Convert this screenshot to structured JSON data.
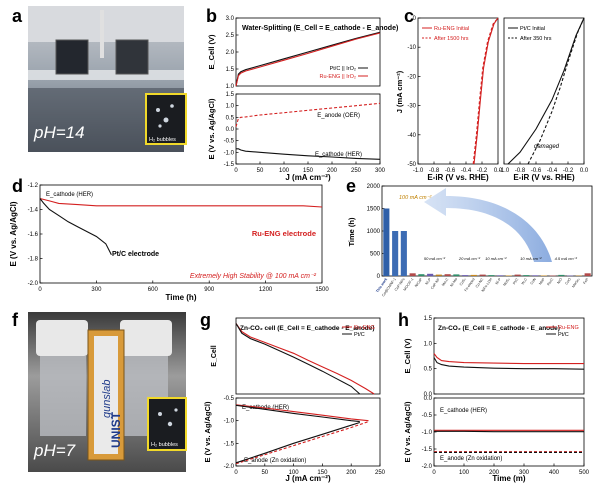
{
  "panel_labels": {
    "a": "a",
    "b": "b",
    "c": "c",
    "d": "d",
    "e": "e",
    "f": "f",
    "g": "g",
    "h": "h"
  },
  "photos": {
    "a": {
      "ph_text": "pH=14",
      "inset_text": "H₂ bubbles"
    },
    "f": {
      "ph_text": "pH=7",
      "inset_text": "H₂ bubbles",
      "device_text_1": "gunslab",
      "device_text_2": "UNIST"
    }
  },
  "colors": {
    "red": "#d42020",
    "black": "#111111",
    "blue_bar": "#2f5fa8",
    "arrow": "#8fb0e0"
  },
  "chart_data": [
    {
      "id": "b",
      "type": "line",
      "title": "Water-Splitting (E_Cell = E_cathode - E_anode)",
      "top": {
        "ylabel": "E_Cell (V)",
        "ylim": [
          1.0,
          3.0
        ],
        "yticks": [
          "1.0",
          "1.5",
          "2.0",
          "2.5",
          "3.0"
        ],
        "series": [
          {
            "name": "Pt/C || IrO₂",
            "color": "#111111",
            "x": [
              0,
              5,
              10,
              20,
              50,
              100,
              150,
              200,
              250,
              300
            ],
            "y": [
              1.0,
              1.35,
              1.42,
              1.48,
              1.6,
              1.8,
              2.0,
              2.2,
              2.4,
              2.58
            ]
          },
          {
            "name": "Ru-ENG || IrO₂",
            "color": "#d42020",
            "x": [
              0,
              5,
              10,
              20,
              50,
              100,
              150,
              200,
              250,
              300
            ],
            "y": [
              1.0,
              1.3,
              1.38,
              1.44,
              1.56,
              1.76,
              1.96,
              2.17,
              2.38,
              2.56
            ]
          }
        ]
      },
      "bottom": {
        "ylabel": "E (V vs. Ag/AgCl)",
        "ylim": [
          -1.5,
          1.5
        ],
        "yticks": [
          "-1.5",
          "-1.0",
          "-0.5",
          "0.0",
          "0.5",
          "1.0",
          "1.5"
        ],
        "annotations": [
          "E_anode (OER)",
          "E_cathode (HER)"
        ],
        "series": [
          {
            "name": "anode",
            "color": "#d42020",
            "dash": true,
            "x": [
              0,
              5,
              10,
              20,
              50,
              100,
              150,
              200,
              250,
              300
            ],
            "y": [
              0.1,
              0.45,
              0.5,
              0.52,
              0.6,
              0.7,
              0.8,
              0.9,
              1.0,
              1.1
            ]
          },
          {
            "name": "cathode",
            "color": "#111111",
            "x": [
              0,
              5,
              10,
              20,
              50,
              100,
              150,
              200,
              250,
              300
            ],
            "y": [
              -0.85,
              -0.85,
              -0.9,
              -0.95,
              -1.0,
              -1.08,
              -1.15,
              -1.2,
              -1.26,
              -1.3
            ]
          }
        ]
      },
      "xlabel": "J (mA cm⁻²)",
      "xlim": [
        0,
        300
      ],
      "xticks": [
        "0",
        "50",
        "100",
        "150",
        "200",
        "250",
        "300"
      ]
    },
    {
      "id": "c",
      "type": "line",
      "ylabel": "J (mA cm⁻²)",
      "ylim": [
        -50,
        0
      ],
      "yticks": [
        "-50",
        "-40",
        "-30",
        "-20",
        "-10",
        "0"
      ],
      "left": {
        "xlabel": "E-iR (V vs. RHE)",
        "xlim": [
          -1.0,
          0.0
        ],
        "xticks": [
          "-1.0",
          "-0.8",
          "-0.6",
          "-0.4",
          "-0.2",
          "0.0"
        ],
        "legend": [
          "Ru-ENG Initial",
          "After 1500 hrs"
        ],
        "series": [
          {
            "name": "Ru-ENG Initial",
            "color": "#d42020",
            "x": [
              -0.3,
              -0.26,
              -0.22,
              -0.18,
              -0.12,
              -0.05,
              0.0
            ],
            "y": [
              -50,
              -40,
              -28,
              -17,
              -8,
              -2,
              0
            ]
          },
          {
            "name": "After 1500 hrs",
            "color": "#d42020",
            "dash": true,
            "x": [
              -0.31,
              -0.27,
              -0.23,
              -0.19,
              -0.13,
              -0.06,
              0.0
            ],
            "y": [
              -50,
              -40,
              -28,
              -17,
              -8,
              -2,
              0
            ]
          }
        ]
      },
      "right": {
        "xlabel": "E-iR (V vs. RHE)",
        "xlim": [
          -1.0,
          0.0
        ],
        "xticks": [
          "-1.0",
          "-0.8",
          "-0.6",
          "-0.4",
          "-0.2",
          "0.0"
        ],
        "legend": [
          "Pt/C Initial",
          "After 350 hrs"
        ],
        "annotation": "damaged",
        "series": [
          {
            "name": "Pt/C Initial",
            "color": "#111111",
            "x": [
              -0.95,
              -0.8,
              -0.6,
              -0.4,
              -0.25,
              -0.1,
              0.0
            ],
            "y": [
              -50,
              -46,
              -38,
              -28,
              -18,
              -6,
              0
            ]
          },
          {
            "name": "After 350 hrs",
            "color": "#111111",
            "dash": true,
            "x": [
              -0.7,
              -0.55,
              -0.4,
              -0.3,
              -0.2,
              -0.08,
              0.0
            ],
            "y": [
              -50,
              -42,
              -32,
              -24,
              -15,
              -5,
              0
            ]
          }
        ]
      }
    },
    {
      "id": "d",
      "type": "line",
      "ylabel": "E (V vs. Ag/AgCl)",
      "ylim": [
        -2.0,
        -1.2
      ],
      "yticks": [
        "-2.0",
        "-1.8",
        "-1.6",
        "-1.4",
        "-1.2"
      ],
      "xlabel": "Time (h)",
      "xlim": [
        0,
        1500
      ],
      "xticks": [
        "0",
        "300",
        "600",
        "900",
        "1200",
        "1500"
      ],
      "annotations": [
        "E_cathode (HER)",
        "Extremely High Stability @ 100 mA cm⁻²"
      ],
      "series": [
        {
          "name": "Ru-ENG electrode",
          "color": "#d42020",
          "x": [
            0,
            50,
            100,
            200,
            300,
            400,
            500,
            600,
            800,
            1000,
            1200,
            1400,
            1500
          ],
          "y": [
            -1.31,
            -1.33,
            -1.35,
            -1.36,
            -1.37,
            -1.37,
            -1.37,
            -1.37,
            -1.37,
            -1.37,
            -1.37,
            -1.37,
            -1.38
          ]
        },
        {
          "name": "Pt/C electrode",
          "color": "#111111",
          "x": [
            0,
            20,
            50,
            100,
            150,
            200,
            250,
            300,
            350,
            380
          ],
          "y": [
            -1.31,
            -1.35,
            -1.4,
            -1.45,
            -1.5,
            -1.54,
            -1.58,
            -1.62,
            -1.68,
            -1.77
          ]
        }
      ]
    },
    {
      "id": "e",
      "type": "bar",
      "ylabel": "Time (h)",
      "ylim": [
        0,
        2000
      ],
      "yticks": [
        "0",
        "500",
        "1000",
        "1500",
        "2000"
      ],
      "annotation": "100 mA cm⁻²",
      "group_labels": [
        "50 mA cm⁻²",
        "20 mA cm⁻²",
        "10 mA cm⁻²",
        "10 mA cm⁻²",
        "4.5 mA cm⁻²"
      ],
      "categories": [
        "This work",
        "Co@CMNF-1",
        "CoP-NPs",
        "MOCIF-1",
        "NiCoP",
        "Ni₂P",
        "CoP-NF",
        "Mo₂C",
        "Ni-Mo",
        "CoS₂",
        "Fe-doped",
        "Co-NC",
        "NiFe-LDH",
        "Ni-P",
        "MoS₂",
        "Pt/C",
        "W₂C",
        "CoN",
        "MoP",
        "Ru/C",
        "NiO",
        "CoO",
        "MoSe₂",
        "FeP"
      ],
      "values": [
        1500,
        1000,
        1000,
        60,
        40,
        50,
        30,
        40,
        35,
        20,
        25,
        30,
        20,
        15,
        12,
        30,
        20,
        15,
        12,
        10,
        25,
        10,
        8,
        60
      ]
    },
    {
      "id": "g",
      "type": "line",
      "title": "Zn-CO₂ cell (E_Cell = E_cathode - E_anode)",
      "top": {
        "ylabel": "E_Cell",
        "legend": [
          "Ru-ENG",
          "Pt/C"
        ],
        "series": [
          {
            "name": "Ru-ENG",
            "color": "#d42020",
            "x": [
              0,
              10,
              25,
              50,
              75,
              100,
              125,
              150,
              175,
              200,
              225,
              240
            ],
            "y": [
              1.3,
              1.15,
              1.05,
              0.95,
              0.85,
              0.75,
              0.62,
              0.5,
              0.38,
              0.25,
              0.1,
              0.0
            ]
          },
          {
            "name": "Pt/C",
            "color": "#111111",
            "x": [
              0,
              10,
              25,
              50,
              75,
              100,
              125,
              150,
              175,
              200,
              215
            ],
            "y": [
              1.3,
              1.12,
              1.02,
              0.92,
              0.8,
              0.68,
              0.55,
              0.42,
              0.28,
              0.14,
              0.0
            ]
          }
        ]
      },
      "bottom": {
        "ylabel": "E (V vs. Ag/AgCl)",
        "ylim": [
          -2.0,
          -0.5
        ],
        "yticks": [
          "-2.0",
          "-1.5",
          "-1.0",
          "-0.5"
        ],
        "annotations": [
          "E_cathode (HER)",
          "E_anode (Zn oxidation)"
        ],
        "series": [
          {
            "name": "Ru-ENG cathode",
            "color": "#d42020",
            "x": [
              0,
              50,
              100,
              150,
              200,
              230
            ],
            "y": [
              -0.65,
              -0.72,
              -0.8,
              -0.88,
              -0.96,
              -1.0
            ]
          },
          {
            "name": "Pt/C cathode",
            "color": "#111111",
            "x": [
              0,
              50,
              100,
              150,
              200,
              215
            ],
            "y": [
              -0.66,
              -0.75,
              -0.84,
              -0.92,
              -1.0,
              -1.02
            ]
          },
          {
            "name": "Ru-ENG anode",
            "color": "#d42020",
            "dash": true,
            "x": [
              0,
              50,
              100,
              150,
              200,
              230
            ],
            "y": [
              -1.95,
              -1.75,
              -1.55,
              -1.35,
              -1.15,
              -1.02
            ]
          },
          {
            "name": "Pt/C anode",
            "color": "#111111",
            "x": [
              0,
              50,
              100,
              150,
              200,
              215
            ],
            "y": [
              -1.93,
              -1.72,
              -1.5,
              -1.3,
              -1.1,
              -1.04
            ]
          }
        ]
      },
      "xlabel": "J (mA cm⁻²)",
      "xlim": [
        0,
        250
      ],
      "xticks": [
        "0",
        "50",
        "100",
        "150",
        "200",
        "250"
      ]
    },
    {
      "id": "h",
      "type": "line",
      "title": "Zn-CO₂ (E_Cell = E_cathode - E_anode)",
      "top": {
        "ylabel": "E_Cell (V)",
        "ylim": [
          0.0,
          1.5
        ],
        "yticks": [
          "0.0",
          "0.5",
          "1.0",
          "1.5"
        ],
        "legend": [
          "Ru-ENG",
          "Pt/C"
        ],
        "series": [
          {
            "name": "Ru-ENG",
            "color": "#d42020",
            "x": [
              0,
              10,
              25,
              50,
              100,
              200,
              300,
              400,
              500
            ],
            "y": [
              0.8,
              0.72,
              0.66,
              0.64,
              0.62,
              0.61,
              0.6,
              0.6,
              0.6
            ]
          },
          {
            "name": "Pt/C",
            "color": "#111111",
            "x": [
              0,
              10,
              25,
              50,
              100,
              200,
              300,
              400,
              500
            ],
            "y": [
              0.72,
              0.62,
              0.58,
              0.55,
              0.53,
              0.51,
              0.5,
              0.5,
              0.49
            ]
          }
        ]
      },
      "bottom": {
        "ylabel": "E (V vs. Ag/AgCl)",
        "ylim": [
          -2.0,
          0.0
        ],
        "yticks": [
          "-2.0",
          "-1.5",
          "-1.0",
          "-0.5",
          "0.0"
        ],
        "annotations": [
          "E_cathode (HER)",
          "E_anode (Zn oxidation)"
        ],
        "series": [
          {
            "name": "Ru-ENG cathode",
            "color": "#d42020",
            "x": [
              0,
              100,
              200,
              300,
              400,
              500
            ],
            "y": [
              -0.95,
              -0.95,
              -0.95,
              -0.95,
              -0.95,
              -0.95
            ]
          },
          {
            "name": "Pt/C cathode",
            "color": "#111111",
            "x": [
              0,
              100,
              200,
              300,
              400,
              500
            ],
            "y": [
              -0.98,
              -0.98,
              -0.99,
              -0.99,
              -0.99,
              -0.99
            ]
          },
          {
            "name": "Ru-ENG anode",
            "color": "#d42020",
            "dash": true,
            "x": [
              0,
              100,
              200,
              300,
              400,
              500
            ],
            "y": [
              -1.58,
              -1.58,
              -1.58,
              -1.58,
              -1.58,
              -1.58
            ]
          },
          {
            "name": "Pt/C anode",
            "color": "#111111",
            "dash": true,
            "x": [
              0,
              100,
              200,
              300,
              400,
              500
            ],
            "y": [
              -1.6,
              -1.6,
              -1.6,
              -1.6,
              -1.6,
              -1.6
            ]
          }
        ]
      },
      "xlabel": "Time (m)",
      "xlim": [
        0,
        500
      ],
      "xticks": [
        "0",
        "100",
        "200",
        "300",
        "400",
        "500"
      ]
    }
  ]
}
